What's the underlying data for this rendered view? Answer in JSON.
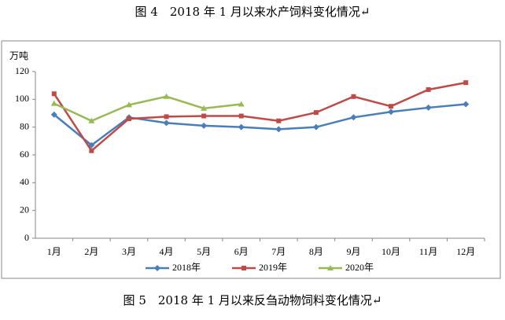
{
  "title": "图 4　2018 年 1 月以来水产饲料变化情况↵",
  "caption": "图 5　2018 年 1 月以来反刍动物饲料变化情况↵",
  "chart_data": {
    "type": "line",
    "y_label": "万吨",
    "categories": [
      "1月",
      "2月",
      "3月",
      "4月",
      "5月",
      "6月",
      "7月",
      "8月",
      "9月",
      "10月",
      "11月",
      "12月"
    ],
    "series": [
      {
        "name": "2018年",
        "color": "#4a7ebb",
        "marker": "diamond",
        "values": [
          89,
          67,
          87,
          83,
          81,
          80,
          78.5,
          80,
          87,
          91,
          94,
          96.5
        ]
      },
      {
        "name": "2019年",
        "color": "#be4b48",
        "marker": "square",
        "values": [
          104,
          63,
          86,
          87.5,
          88,
          88,
          84.5,
          90.5,
          102,
          95,
          107,
          112
        ]
      },
      {
        "name": "2020年",
        "color": "#98b954",
        "marker": "triangle",
        "values": [
          97,
          84.5,
          96,
          102,
          93.5,
          96.5,
          null,
          null,
          null,
          null,
          null,
          null
        ]
      }
    ],
    "ylim": [
      0,
      120
    ],
    "yticks": [
      0,
      20,
      40,
      60,
      80,
      100,
      120
    ],
    "grid": false,
    "legend": "bottom"
  }
}
